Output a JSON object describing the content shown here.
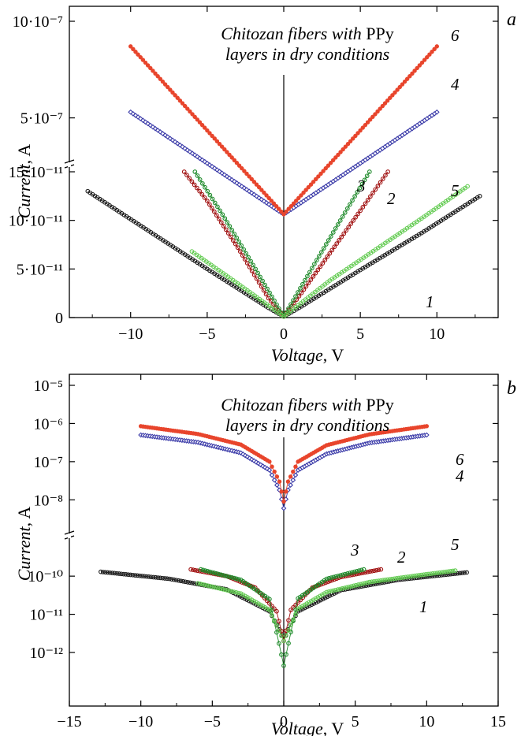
{
  "chart_data": [
    {
      "type": "line",
      "panel": "a",
      "annotation": [
        "Chitozan fibers with PPy",
        "layers in dry conditions"
      ],
      "xlabel": "Voltage, V",
      "ylabel": "Current, A",
      "xlim": [
        -14,
        14
      ],
      "xticks": [
        -10,
        -5,
        0,
        5,
        10
      ],
      "yticks_lower": [
        {
          "value": 0,
          "label": "0"
        },
        {
          "value": 5e-11,
          "label": "5·10⁻¹¹"
        },
        {
          "value": 1e-10,
          "label": "10·10⁻¹¹"
        },
        {
          "value": 1.5e-10,
          "label": "15·10⁻¹¹"
        }
      ],
      "yticks_upper": [
        {
          "value": 5e-07,
          "label": "5·10⁻⁷"
        },
        {
          "value": 1e-06,
          "label": "10·10⁻⁷"
        }
      ],
      "axis_break": "broken y-axis between 15·10⁻¹¹ and upper range",
      "grid": false,
      "series": [
        {
          "label": "1",
          "color": "#1a1a1a",
          "marker": "open-circle",
          "range": "lower",
          "x": [
            -12.8,
            -9,
            -5,
            -1,
            0,
            1,
            5,
            9,
            12.8
          ],
          "y": [
            1.3e-10,
            9.1e-11,
            5e-11,
            1e-11,
            1e-12,
            1e-11,
            4.9e-11,
            8.7e-11,
            1.25e-10
          ]
        },
        {
          "label": "2",
          "color": "#a01010",
          "marker": "open-circle",
          "range": "lower",
          "x": [
            -6.5,
            -5,
            -3,
            -1,
            0,
            1,
            3,
            5,
            6.8
          ],
          "y": [
            1.5e-10,
            1.2e-10,
            7.2e-11,
            2e-11,
            1e-12,
            2.2e-11,
            6.6e-11,
            1.1e-10,
            1.5e-10
          ]
        },
        {
          "label": "3",
          "color": "#1e8a2a",
          "marker": "open-circle",
          "range": "lower",
          "x": [
            -5.8,
            -4,
            -2,
            0,
            2,
            4,
            5.6
          ],
          "y": [
            1.5e-10,
            1.06e-10,
            5.4e-11,
            1e-12,
            5.5e-11,
            1.08e-10,
            1.5e-10
          ]
        },
        {
          "label": "5",
          "color": "#66cc55",
          "marker": "open-circle",
          "range": "lower",
          "x": [
            -6,
            -3,
            0,
            3,
            6,
            9,
            12
          ],
          "y": [
            6.8e-11,
            3.5e-11,
            1e-12,
            3.8e-11,
            7e-11,
            1.02e-10,
            1.35e-10
          ]
        },
        {
          "label": "4",
          "color": "#3a3aa8",
          "marker": "open-diamond",
          "range": "upper",
          "x": [
            -10,
            -5,
            0,
            5,
            10
          ],
          "y": [
            5.3e-07,
            2.65e-07,
            1e-09,
            2.65e-07,
            5.3e-07
          ]
        },
        {
          "label": "6",
          "color": "#e8452c",
          "marker": "filled-circle",
          "range": "upper",
          "x": [
            -10,
            -5,
            0,
            5,
            10
          ],
          "y": [
            8.7e-07,
            4.35e-07,
            1e-09,
            4.35e-07,
            8.7e-07
          ]
        }
      ]
    },
    {
      "type": "line",
      "panel": "b",
      "yscale": "log",
      "annotation": [
        "Chitozan fibers with PPy",
        "layers in dry conditions"
      ],
      "xlabel": "Voltage, V",
      "ylabel": "Current, A",
      "xlim": [
        -15,
        15
      ],
      "xticks": [
        -15,
        -10,
        -5,
        0,
        5,
        10,
        15
      ],
      "ylim": [
        3e-13,
        2e-05
      ],
      "yticks": [
        {
          "value": 1e-12,
          "label": "10⁻¹²"
        },
        {
          "value": 1e-11,
          "label": "10⁻¹¹"
        },
        {
          "value": 1e-10,
          "label": "10⁻¹⁰"
        },
        {
          "value": 1e-08,
          "label": "10⁻⁸"
        },
        {
          "value": 1e-07,
          "label": "10⁻⁷"
        },
        {
          "value": 1e-06,
          "label": "10⁻⁶"
        },
        {
          "value": 1e-05,
          "label": "10⁻⁵"
        }
      ],
      "axis_break": "broken y-axis near 10⁻¹⁰",
      "grid": false,
      "series": [
        {
          "label": "1",
          "color": "#1a1a1a",
          "marker": "open-circle",
          "x": [
            -12.8,
            -8,
            -4,
            -1,
            -0.3,
            0,
            0.3,
            1,
            4,
            8,
            12.8
          ],
          "y": [
            1.3e-10,
            8.5e-11,
            4.5e-11,
            1.2e-11,
            4e-12,
            2e-12,
            4e-12,
            1.2e-11,
            4.3e-11,
            8e-11,
            1.25e-10
          ]
        },
        {
          "label": "2",
          "color": "#a01010",
          "marker": "open-circle",
          "x": [
            -6.5,
            -4,
            -2,
            -0.5,
            0,
            0.5,
            2,
            4,
            6.8
          ],
          "y": [
            1.5e-10,
            1e-10,
            5e-11,
            1.2e-11,
            2e-12,
            1.3e-11,
            5e-11,
            9.5e-11,
            1.5e-10
          ]
        },
        {
          "label": "3",
          "color": "#1e8a2a",
          "marker": "open-circle",
          "x": [
            -5.8,
            -3,
            -1,
            0,
            1,
            3,
            5.6
          ],
          "y": [
            1.5e-10,
            8e-11,
            2.5e-11,
            4.5e-13,
            2.6e-11,
            8.5e-11,
            1.5e-10
          ]
        },
        {
          "label": "5",
          "color": "#66cc55",
          "marker": "open-circle",
          "x": [
            -6,
            -3,
            -1,
            0,
            1,
            3,
            6,
            9,
            12
          ],
          "y": [
            6.5e-11,
            3.5e-11,
            1.3e-11,
            2e-12,
            1.4e-11,
            3.8e-11,
            7e-11,
            1e-10,
            1.4e-10
          ]
        },
        {
          "label": "4",
          "color": "#3a3aa8",
          "marker": "open-diamond",
          "x": [
            -10,
            -6,
            -3,
            -1,
            -0.3,
            0,
            0.3,
            1,
            3,
            6,
            10
          ],
          "y": [
            5e-07,
            3.2e-07,
            1.7e-07,
            6e-08,
            1.8e-08,
            6e-09,
            1.8e-08,
            6e-08,
            1.6e-07,
            3.1e-07,
            5e-07
          ]
        },
        {
          "label": "6",
          "color": "#e8452c",
          "marker": "filled-circle",
          "x": [
            -10,
            -6,
            -3,
            -1,
            -0.3,
            0,
            0.3,
            1,
            3,
            6,
            10
          ],
          "y": [
            8.5e-07,
            5.3e-07,
            2.8e-07,
            1e-07,
            3e-08,
            9e-09,
            3e-08,
            1e-07,
            2.7e-07,
            5.2e-07,
            8.5e-07
          ]
        }
      ]
    }
  ]
}
